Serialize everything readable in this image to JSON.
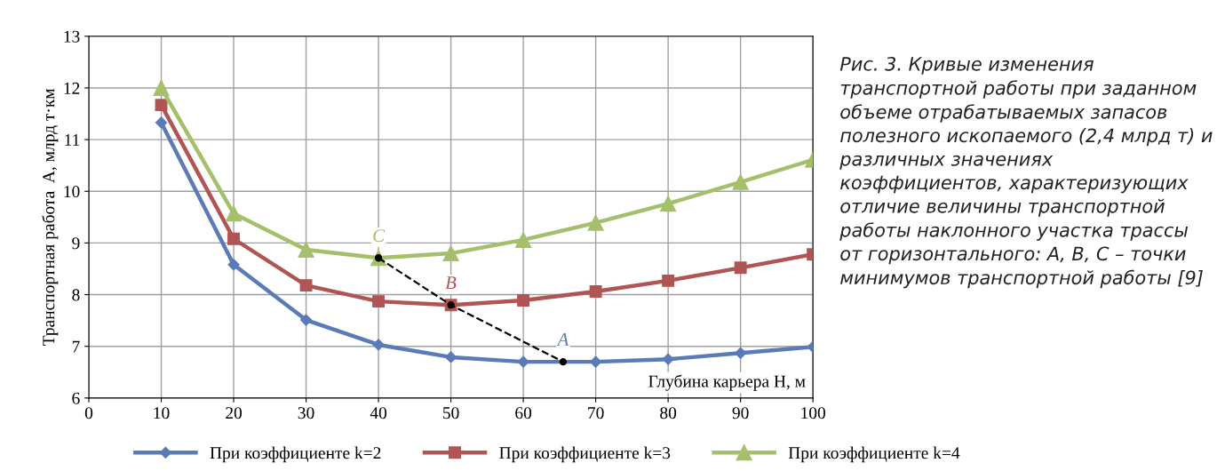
{
  "chart_data": {
    "type": "line",
    "xlabel": "Глубина карьера H, м",
    "ylabel": "Транспортная работа  A, млрд т·км",
    "x": [
      10,
      20,
      30,
      40,
      50,
      60,
      70,
      80,
      90,
      100
    ],
    "series": [
      {
        "name": "При коэффициенте k=2",
        "color": "#5b7bb8",
        "marker": "diamond",
        "values": [
          11.33,
          8.58,
          7.51,
          7.03,
          6.79,
          6.7,
          6.7,
          6.75,
          6.87,
          6.99
        ]
      },
      {
        "name": "При коэффициенте k=3",
        "color": "#b05454",
        "marker": "square",
        "values": [
          11.67,
          9.08,
          8.18,
          7.87,
          7.8,
          7.89,
          8.06,
          8.27,
          8.52,
          8.78
        ]
      },
      {
        "name": "При коэффициенте k=4",
        "color": "#a4c06a",
        "marker": "triangle",
        "values": [
          12.0,
          9.57,
          8.87,
          8.71,
          8.8,
          9.06,
          9.39,
          9.76,
          10.18,
          10.61
        ]
      },
      {
        "color": "#000000",
        "marker": "circle",
        "line_style": "dashed",
        "x": [
          40,
          50,
          65.5
        ],
        "values": [
          8.71,
          7.8,
          6.7
        ]
      }
    ],
    "xlim": [
      0,
      100
    ],
    "xticks": [
      0,
      10,
      20,
      30,
      40,
      50,
      60,
      70,
      80,
      90,
      100
    ],
    "ylim": [
      6,
      13
    ],
    "yticks": [
      6,
      7,
      8,
      9,
      10,
      11,
      12,
      13
    ],
    "grid": true,
    "legend": "bottom",
    "annotations": [
      {
        "text": "C",
        "x": 40,
        "y": 8.71
      },
      {
        "text": "B",
        "x": 50,
        "y": 7.8
      },
      {
        "text": "A",
        "x": 65.5,
        "y": 6.7
      },
      "Рис. 3. Кривые изменения транспортной работы при заданном объеме отрабатываемых запасов полезного ископаемого (2,4 млрд т) и различных значениях коэффициентов, характеризующих отличие величины транспортной работы наклонного участка трассы от горизонтального: А, В, С – точки минимумов транспортной работы [9]"
    ]
  }
}
